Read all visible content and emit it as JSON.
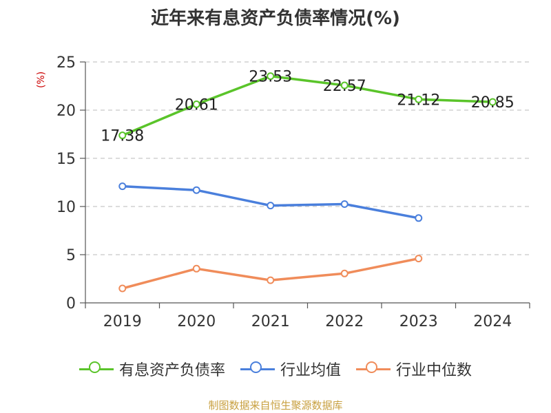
{
  "chart_data": {
    "type": "line",
    "title": "近年来有息资产负债率情况(%)",
    "y_unit": "(%)",
    "categories": [
      "2019",
      "2020",
      "2021",
      "2022",
      "2023",
      "2024"
    ],
    "ylim": [
      0,
      25
    ],
    "yticks": [
      "0",
      "5",
      "10",
      "15",
      "20",
      "25"
    ],
    "grid": true,
    "legend_position": "bottom",
    "series": [
      {
        "name": "有息资产负债率",
        "color": "#5ac42a",
        "values": [
          17.38,
          20.61,
          23.53,
          22.57,
          21.12,
          20.85
        ],
        "labels": [
          "17.38",
          "20.61",
          "23.53",
          "22.57",
          "21.12",
          "20.85"
        ]
      },
      {
        "name": "行业均值",
        "color": "#4a7fdc",
        "values": [
          12.1,
          11.7,
          10.1,
          10.25,
          8.8,
          null
        ]
      },
      {
        "name": "行业中位数",
        "color": "#f08c5a",
        "values": [
          1.5,
          3.55,
          2.35,
          3.05,
          4.6,
          null
        ]
      }
    ]
  },
  "source": "制图数据来自恒生聚源数据库"
}
